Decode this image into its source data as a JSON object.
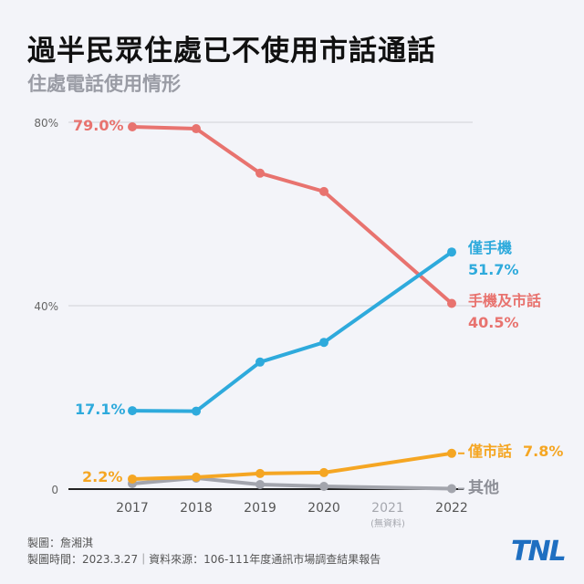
{
  "header": {
    "title": "過半民眾住處已不使用市話通話",
    "subtitle": "住處電話使用情形"
  },
  "chart_data": {
    "type": "line",
    "title": "住處電話使用情形",
    "x": [
      "2017",
      "2018",
      "2019",
      "2020",
      "2021",
      "2022"
    ],
    "x_note": "(無資料)",
    "yticks": [
      "0",
      "40%",
      "80%"
    ],
    "ylim": [
      0,
      80
    ],
    "grid": true,
    "series": [
      {
        "name": "手機及市話",
        "color": "#e8736f",
        "values": [
          79.0,
          78.6,
          68.9,
          64.9,
          null,
          40.5
        ],
        "start_label": "79.0%",
        "end_label": "40.5%"
      },
      {
        "name": "僅手機",
        "color": "#2eaadc",
        "values": [
          17.1,
          17.0,
          27.7,
          32.0,
          null,
          51.7
        ],
        "start_label": "17.1%",
        "end_label": "51.7%"
      },
      {
        "name": "僅市話",
        "color": "#f5a623",
        "values": [
          2.2,
          2.6,
          3.4,
          3.6,
          null,
          7.8
        ],
        "start_label": "2.2%",
        "end_label": "7.8%"
      },
      {
        "name": "其他",
        "color": "#a3a5ad",
        "values": [
          1.2,
          2.4,
          1.0,
          0.6,
          null,
          0.1
        ]
      }
    ]
  },
  "footer": {
    "producer": "製圖：詹湘淇",
    "meta": "製圖時間：2023.3.27｜資料來源：106-111年度通訊市場調查結果報告"
  },
  "logo": "TNL"
}
